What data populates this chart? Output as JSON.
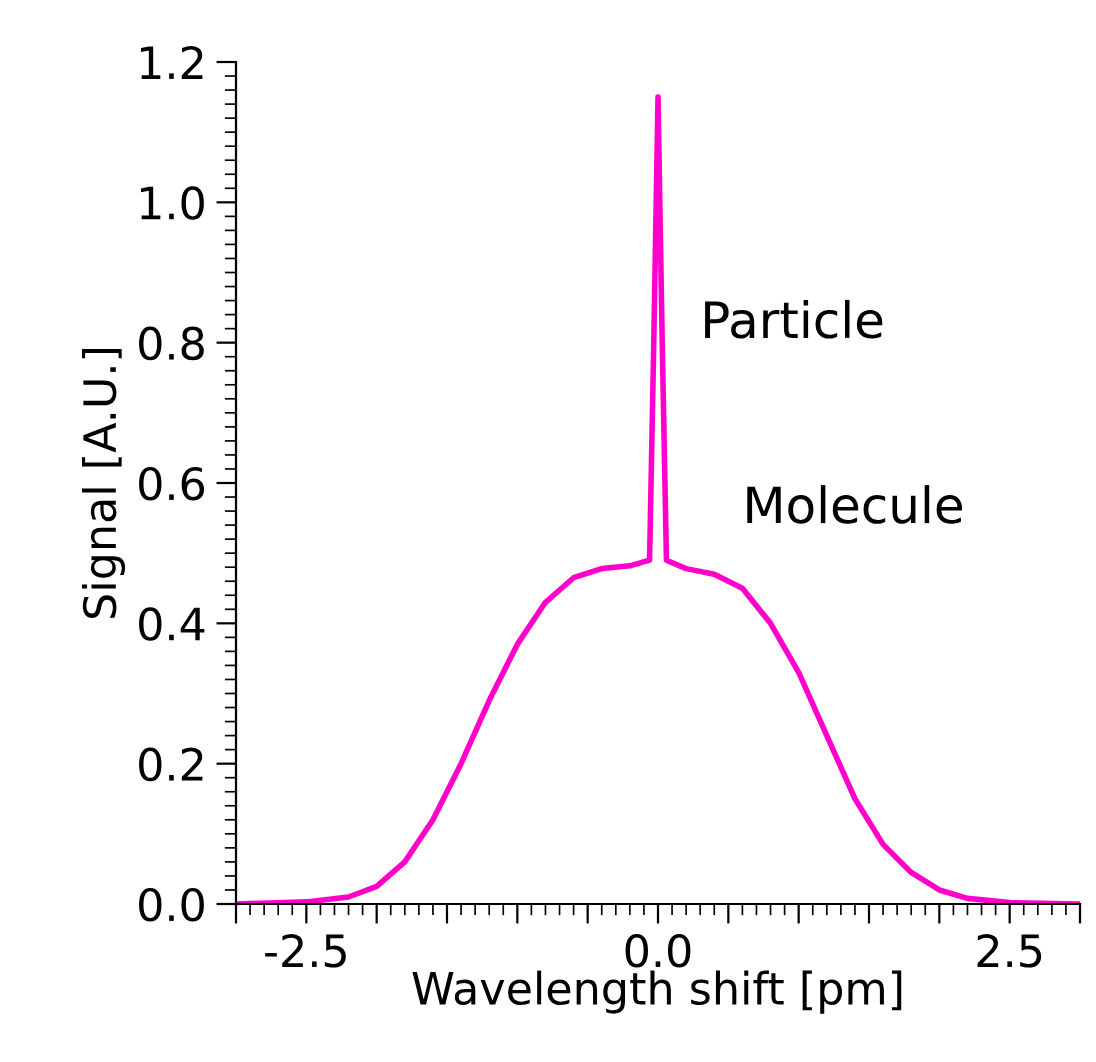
{
  "chart_data": {
    "type": "line",
    "xlabel": "Wavelength shift [pm]",
    "ylabel": "Signal [A.U.]",
    "x": [
      -3.0,
      -2.5,
      -2.2,
      -2.0,
      -1.8,
      -1.6,
      -1.4,
      -1.2,
      -1.0,
      -0.8,
      -0.6,
      -0.4,
      -0.2,
      -0.06,
      -0.03,
      0,
      0.03,
      0.06,
      0.2,
      0.4,
      0.6,
      0.8,
      1.0,
      1.2,
      1.4,
      1.6,
      1.8,
      2.0,
      2.2,
      2.5,
      3.0
    ],
    "series": [
      {
        "color": "#ff00cc",
        "values": [
          0.0,
          0.003,
          0.01,
          0.025,
          0.06,
          0.12,
          0.2,
          0.29,
          0.37,
          0.43,
          0.465,
          0.478,
          0.482,
          0.49,
          0.8,
          1.15,
          0.8,
          0.49,
          0.478,
          0.47,
          0.45,
          0.4,
          0.33,
          0.24,
          0.15,
          0.085,
          0.045,
          0.02,
          0.008,
          0.002,
          0.0
        ]
      }
    ],
    "xlim": [
      -3.0,
      3.0
    ],
    "xticks": [
      {
        "value": -3.0,
        "label": null
      },
      {
        "value": -2.5,
        "label": "-2.5"
      },
      {
        "value": -2.0,
        "label": null
      },
      {
        "value": -1.5,
        "label": null
      },
      {
        "value": -1.0,
        "label": null
      },
      {
        "value": -0.5,
        "label": null
      },
      {
        "value": 0.0,
        "label": "0.0"
      },
      {
        "value": 0.5,
        "label": null
      },
      {
        "value": 1.0,
        "label": null
      },
      {
        "value": 1.5,
        "label": null
      },
      {
        "value": 2.0,
        "label": null
      },
      {
        "value": 2.5,
        "label": "2.5"
      },
      {
        "value": 3.0,
        "label": null
      }
    ],
    "ylim": [
      0,
      1.2
    ],
    "yticks": [
      {
        "value": 0,
        "label": "0.0"
      },
      {
        "value": 0.2,
        "label": "0.2"
      },
      {
        "value": 0.4,
        "label": "0.4"
      },
      {
        "value": 0.6,
        "label": "0.6"
      },
      {
        "value": 0.8,
        "label": "0.8"
      },
      {
        "value": 1.0,
        "label": "1.0"
      },
      {
        "value": 1.2,
        "label": "1.2"
      }
    ],
    "annotations": [
      "Particle",
      "Molecule"
    ],
    "grid": false,
    "legend": false,
    "marker": "none",
    "line_style": "solid"
  }
}
